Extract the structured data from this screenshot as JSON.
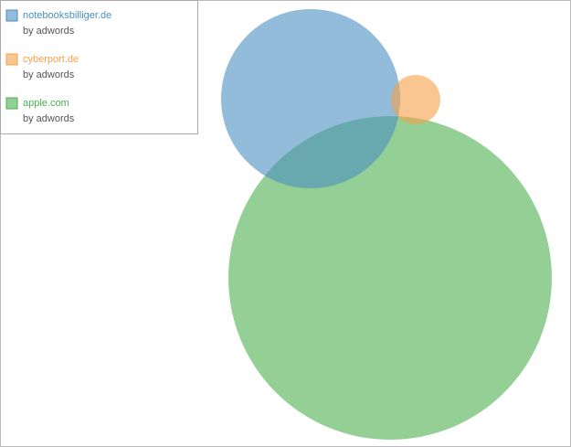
{
  "legend": {
    "items": [
      {
        "name": "notebooksbilliger.de",
        "source": "by adwords",
        "color": "#4a8fc0"
      },
      {
        "name": "cyberport.de",
        "source": "by adwords",
        "color": "#f5a04a"
      },
      {
        "name": "apple.com",
        "source": "by adwords",
        "color": "#4caf50"
      }
    ]
  }
}
